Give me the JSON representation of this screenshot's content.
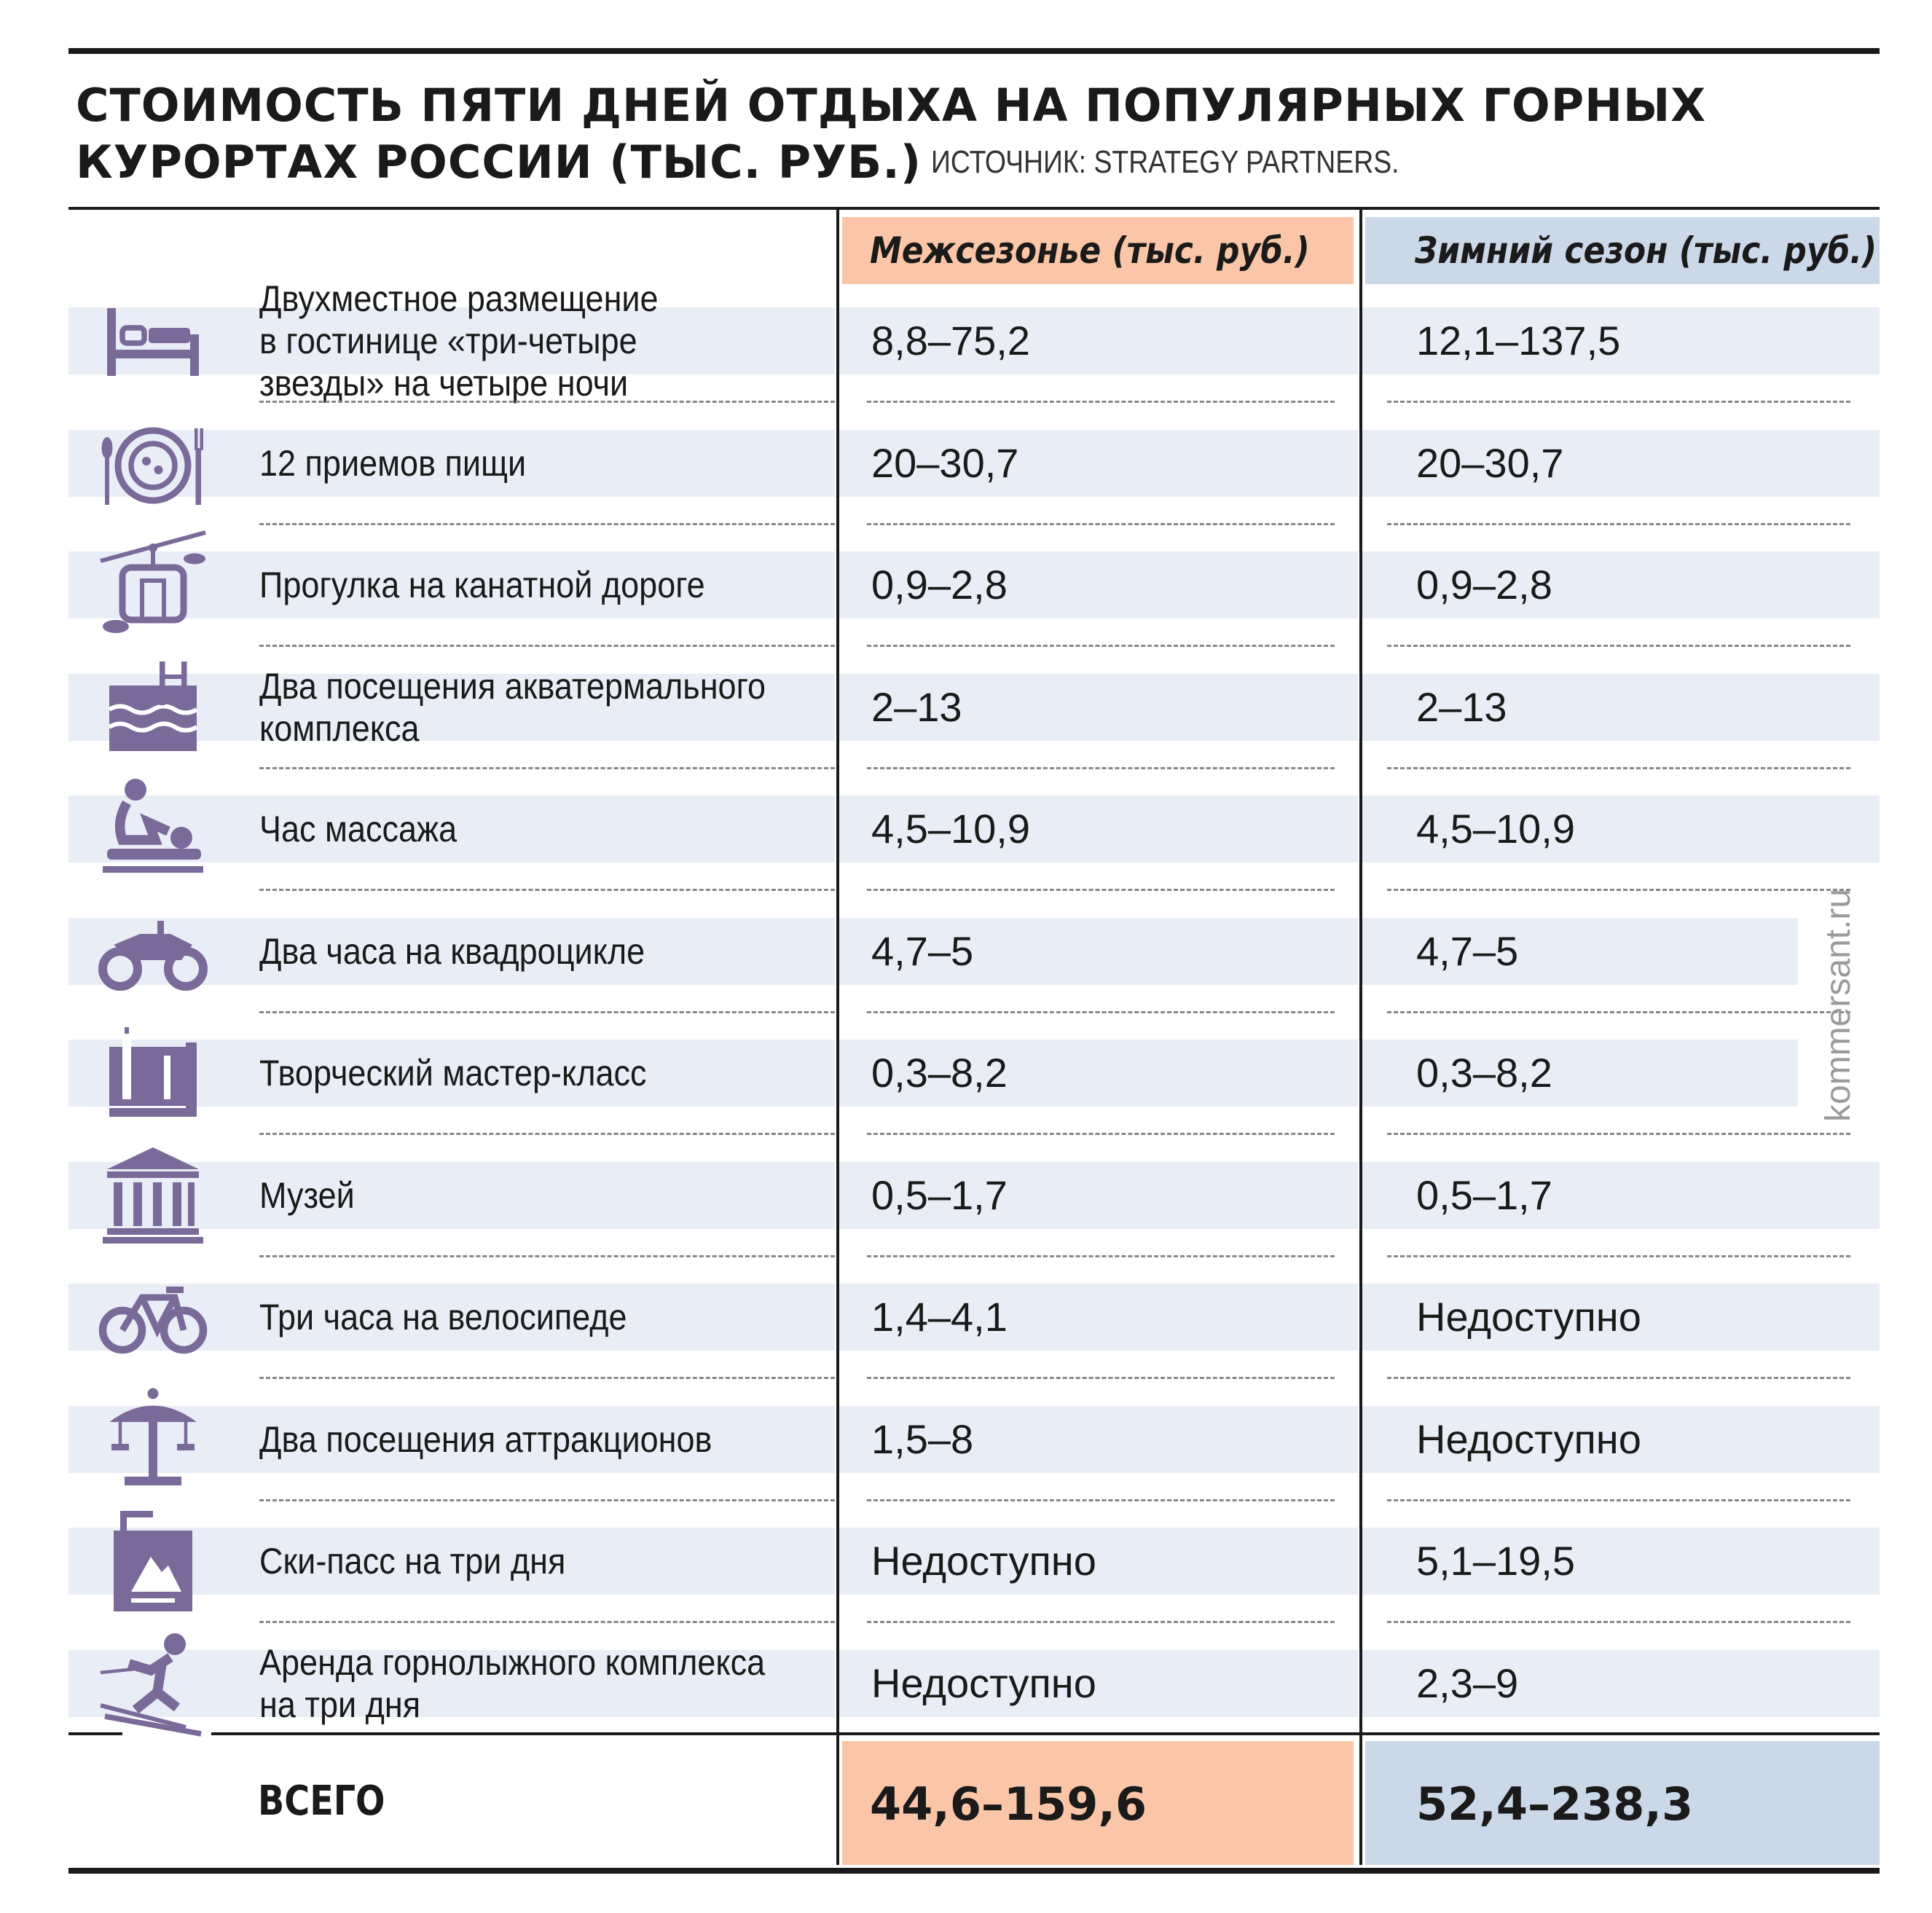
{
  "chart_data": {
    "type": "table",
    "title_line1": "СТОИМОСТЬ ПЯТИ ДНЕЙ ОТДЫХА НА ПОПУЛЯРНЫХ ГОРНЫХ",
    "title_line2": "КУРОРТАХ РОССИИ (ТЫС. РУБ.)",
    "source": "ИСТОЧНИК: STRATEGY PARTNERS.",
    "columns": [
      "Межсезонье (тыс. руб.)",
      "Зимний сезон (тыс. руб.)"
    ],
    "rows": [
      {
        "icon": "bed-icon",
        "label_lines": [
          "Двухместное размещение",
          "в гостинице «три-четыре",
          "звезды» на четыре ночи"
        ],
        "off_season": "8,8–75,2",
        "winter": "12,1–137,5"
      },
      {
        "icon": "meal-icon",
        "label_lines": [
          "12 приемов пищи"
        ],
        "off_season": "20–30,7",
        "winter": "20–30,7"
      },
      {
        "icon": "cable-car-icon",
        "label_lines": [
          "Прогулка на канатной дороге"
        ],
        "off_season": "0,9–2,8",
        "winter": "0,9–2,8"
      },
      {
        "icon": "pool-icon",
        "label_lines": [
          "Два посещения акватермального",
          "комплекса"
        ],
        "off_season": "2–13",
        "winter": "2–13"
      },
      {
        "icon": "massage-icon",
        "label_lines": [
          "Час массажа"
        ],
        "off_season": "4,5–10,9",
        "winter": "4,5–10,9"
      },
      {
        "icon": "quad-bike-icon",
        "label_lines": [
          "Два часа на квадроцикле"
        ],
        "off_season": "4,7–5",
        "winter": "4,7–5"
      },
      {
        "icon": "craft-icon",
        "label_lines": [
          "Творческий мастер-класс"
        ],
        "off_season": "0,3–8,2",
        "winter": "0,3–8,2"
      },
      {
        "icon": "museum-icon",
        "label_lines": [
          "Музей"
        ],
        "off_season": "0,5–1,7",
        "winter": "0,5–1,7"
      },
      {
        "icon": "bicycle-icon",
        "label_lines": [
          "Три часа на велосипеде"
        ],
        "off_season": "1,4–4,1",
        "winter": "Недоступно"
      },
      {
        "icon": "carousel-icon",
        "label_lines": [
          "Два посещения аттракционов"
        ],
        "off_season": "1,5–8",
        "winter": "Недоступно"
      },
      {
        "icon": "ski-pass-icon",
        "label_lines": [
          "Ски-пасс на три дня"
        ],
        "off_season": "Недоступно",
        "winter": "5,1–19,5"
      },
      {
        "icon": "skier-icon",
        "label_lines": [
          "Аренда горнолыжного комплекса",
          "на три дня"
        ],
        "off_season": "Недоступно",
        "winter": "2,3–9"
      }
    ],
    "total": {
      "label": "ВСЕГО",
      "off_season": "44,6–159,6",
      "winter": "52,4–238,3"
    },
    "watermark": "kommersant.ru"
  },
  "colors": {
    "off_season_fill": "#fbc6a8",
    "winter_fill": "#cbd8e8",
    "row_band": "#e9eef6",
    "icon": "#7a6a9a"
  }
}
